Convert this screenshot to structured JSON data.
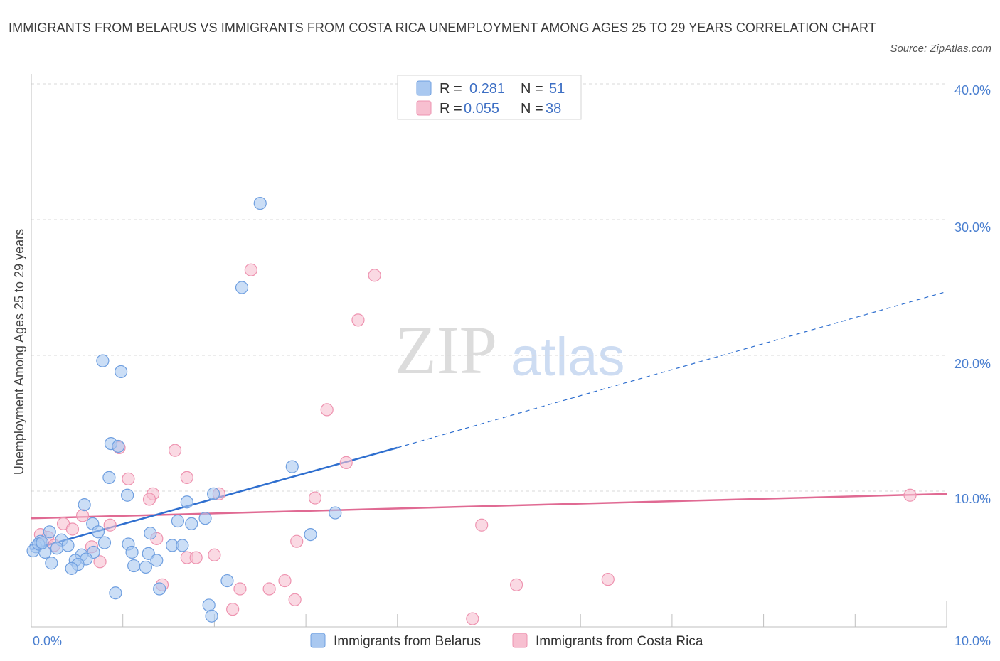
{
  "title": "IMMIGRANTS FROM BELARUS VS IMMIGRANTS FROM COSTA RICA UNEMPLOYMENT AMONG AGES 25 TO 29 YEARS CORRELATION CHART",
  "source": "Source: ZipAtlas.com",
  "watermark": {
    "zip": "ZIP",
    "atlas": "atlas"
  },
  "legend_top": {
    "r_label": "R =",
    "n_label": "N =",
    "belarus": {
      "r": "0.281",
      "n": "51"
    },
    "costa_rica": {
      "r": "0.055",
      "n": "38"
    }
  },
  "colors": {
    "belarus_fill": "#a9c8f0",
    "belarus_stroke": "#6f9fe0",
    "belarus_line": "#2f6fcf",
    "costa_fill": "#f7bfd0",
    "costa_stroke": "#ee93b0",
    "costa_line": "#e06a93",
    "grid": "#d9d9d9",
    "tick": "#4a7fd0"
  },
  "chart_data": {
    "type": "scatter",
    "title": "IMMIGRANTS FROM BELARUS VS IMMIGRANTS FROM COSTA RICA UNEMPLOYMENT AMONG AGES 25 TO 29 YEARS CORRELATION CHART",
    "xlabel": "",
    "ylabel": "Unemployment Among Ages 25 to 29 years",
    "xlim": [
      0,
      10
    ],
    "ylim": [
      0,
      40
    ],
    "x_tick_labels": [
      "0.0%",
      "10.0%"
    ],
    "y_tick_labels": [
      "10.0%",
      "20.0%",
      "30.0%",
      "40.0%"
    ],
    "y_ticks": [
      10,
      20,
      30,
      40
    ],
    "series": [
      {
        "name": "Immigrants from Belarus",
        "r": 0.281,
        "n": 51,
        "trend": {
          "solid": [
            [
              0,
              5.7
            ],
            [
              4.0,
              13.2
            ]
          ],
          "dashed": [
            [
              4.0,
              13.2
            ],
            [
              10.0,
              24.7
            ]
          ]
        },
        "points": [
          [
            2.5,
            31.2
          ],
          [
            2.3,
            25.0
          ],
          [
            0.78,
            19.6
          ],
          [
            0.98,
            18.8
          ],
          [
            0.87,
            13.5
          ],
          [
            0.95,
            13.3
          ],
          [
            0.85,
            11.0
          ],
          [
            2.85,
            11.8
          ],
          [
            1.05,
            9.7
          ],
          [
            1.7,
            9.2
          ],
          [
            1.99,
            9.8
          ],
          [
            0.58,
            9.0
          ],
          [
            3.32,
            8.4
          ],
          [
            1.9,
            8.0
          ],
          [
            1.6,
            7.8
          ],
          [
            1.75,
            7.6
          ],
          [
            0.67,
            7.6
          ],
          [
            0.73,
            7.0
          ],
          [
            1.3,
            6.9
          ],
          [
            3.05,
            6.8
          ],
          [
            0.2,
            7.0
          ],
          [
            0.33,
            6.4
          ],
          [
            0.1,
            6.3
          ],
          [
            0.8,
            6.2
          ],
          [
            1.06,
            6.1
          ],
          [
            0.4,
            6.0
          ],
          [
            1.54,
            6.0
          ],
          [
            1.65,
            6.0
          ],
          [
            0.28,
            5.8
          ],
          [
            0.05,
            5.9
          ],
          [
            0.15,
            5.5
          ],
          [
            0.68,
            5.5
          ],
          [
            1.1,
            5.5
          ],
          [
            1.28,
            5.4
          ],
          [
            0.55,
            5.3
          ],
          [
            0.48,
            4.9
          ],
          [
            0.6,
            5.0
          ],
          [
            1.37,
            4.9
          ],
          [
            0.22,
            4.7
          ],
          [
            0.51,
            4.6
          ],
          [
            1.12,
            4.5
          ],
          [
            0.44,
            4.3
          ],
          [
            1.25,
            4.4
          ],
          [
            2.14,
            3.4
          ],
          [
            1.4,
            2.8
          ],
          [
            0.92,
            2.5
          ],
          [
            1.94,
            1.6
          ],
          [
            1.97,
            0.8
          ],
          [
            0.02,
            5.6
          ],
          [
            0.08,
            6.1
          ],
          [
            0.12,
            6.2
          ]
        ]
      },
      {
        "name": "Immigrants from Costa Rica",
        "r": 0.055,
        "n": 38,
        "trend": {
          "solid": [
            [
              0,
              8.0
            ],
            [
              10.0,
              9.8
            ]
          ]
        },
        "points": [
          [
            2.4,
            26.3
          ],
          [
            3.75,
            25.9
          ],
          [
            3.57,
            22.6
          ],
          [
            3.23,
            16.0
          ],
          [
            0.96,
            13.2
          ],
          [
            1.57,
            13.0
          ],
          [
            3.44,
            12.1
          ],
          [
            1.06,
            10.9
          ],
          [
            1.7,
            11.0
          ],
          [
            1.33,
            9.8
          ],
          [
            2.05,
            9.8
          ],
          [
            1.29,
            9.4
          ],
          [
            3.1,
            9.5
          ],
          [
            9.6,
            9.7
          ],
          [
            0.56,
            8.2
          ],
          [
            0.86,
            7.5
          ],
          [
            0.35,
            7.6
          ],
          [
            4.92,
            7.5
          ],
          [
            0.45,
            7.2
          ],
          [
            0.1,
            6.8
          ],
          [
            0.18,
            6.6
          ],
          [
            1.37,
            6.5
          ],
          [
            2.9,
            6.3
          ],
          [
            0.25,
            6.0
          ],
          [
            0.66,
            5.9
          ],
          [
            2.0,
            5.3
          ],
          [
            1.7,
            5.1
          ],
          [
            1.8,
            5.1
          ],
          [
            0.75,
            4.8
          ],
          [
            2.77,
            3.4
          ],
          [
            5.3,
            3.1
          ],
          [
            6.3,
            3.5
          ],
          [
            1.43,
            3.1
          ],
          [
            2.28,
            2.8
          ],
          [
            2.6,
            2.8
          ],
          [
            2.88,
            2.0
          ],
          [
            2.2,
            1.3
          ],
          [
            4.82,
            0.6
          ]
        ]
      }
    ]
  },
  "legend_bottom": {
    "belarus": "Immigrants from Belarus",
    "costa_rica": "Immigrants from Costa Rica"
  }
}
